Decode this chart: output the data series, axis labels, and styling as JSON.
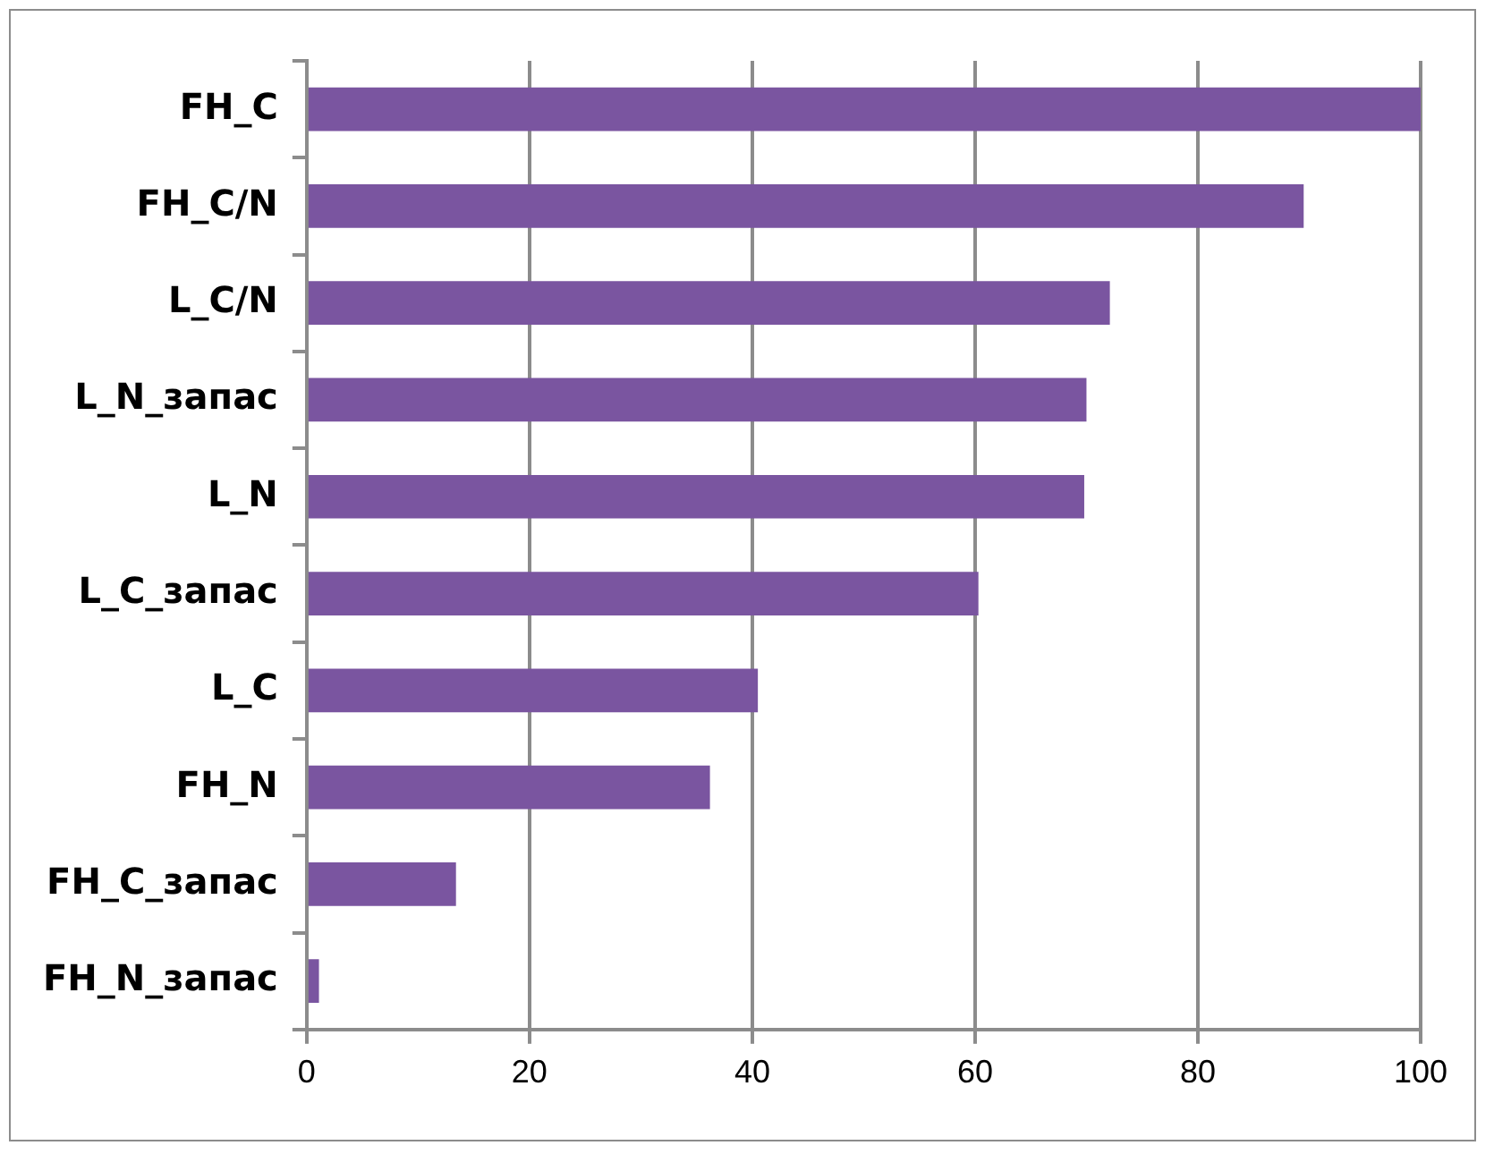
{
  "chart_data": {
    "type": "bar",
    "orientation": "horizontal",
    "categories": [
      "FH_C",
      "FH_C/N",
      "L_C/N",
      "L_N_запас",
      "L_N",
      "L_C_запас",
      "L_C",
      "FH_N",
      "FH_C_запас",
      "FH_N_запас"
    ],
    "values": [
      100,
      89.5,
      72.1,
      70,
      69.8,
      60.3,
      40.5,
      36.2,
      13.4,
      1.1
    ],
    "color": "#7a55a0",
    "xlim": [
      0,
      100
    ],
    "xticks": [
      0,
      20,
      40,
      60,
      80,
      100
    ],
    "grid": "x",
    "legend": false
  }
}
